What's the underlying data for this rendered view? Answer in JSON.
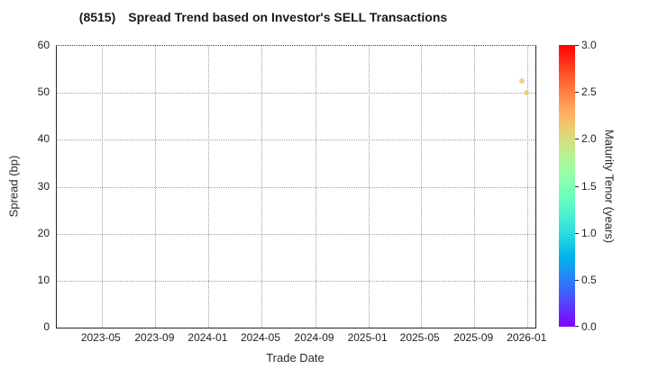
{
  "chart_data": {
    "type": "scatter",
    "title_ticker": "(8515)",
    "title_text": "Spread Trend based on Investor's SELL Transactions",
    "xlabel": "Trade Date",
    "ylabel": "Spread (bp)",
    "xlim": [
      "2023-01-18",
      "2026-01-19"
    ],
    "ylim": [
      0,
      60
    ],
    "x_ticks": [
      "2023-05",
      "2023-09",
      "2024-01",
      "2024-05",
      "2024-09",
      "2025-01",
      "2025-05",
      "2025-09",
      "2026-01"
    ],
    "y_ticks": [
      0,
      10,
      20,
      30,
      40,
      50,
      60
    ],
    "grid": true,
    "legend_position": "none",
    "points": [
      {
        "date": "2025-12-20",
        "spread_bp": 52.5,
        "maturity_years": 2.1
      },
      {
        "date": "2025-12-30",
        "spread_bp": 50.1,
        "maturity_years": 2.1
      }
    ],
    "colorbar": {
      "label": "Maturity Tenor (years)",
      "min": 0.0,
      "max": 3.0,
      "ticks": [
        "0.0",
        "0.5",
        "1.0",
        "1.5",
        "2.0",
        "2.5",
        "3.0"
      ],
      "colormap": "rainbow"
    }
  }
}
